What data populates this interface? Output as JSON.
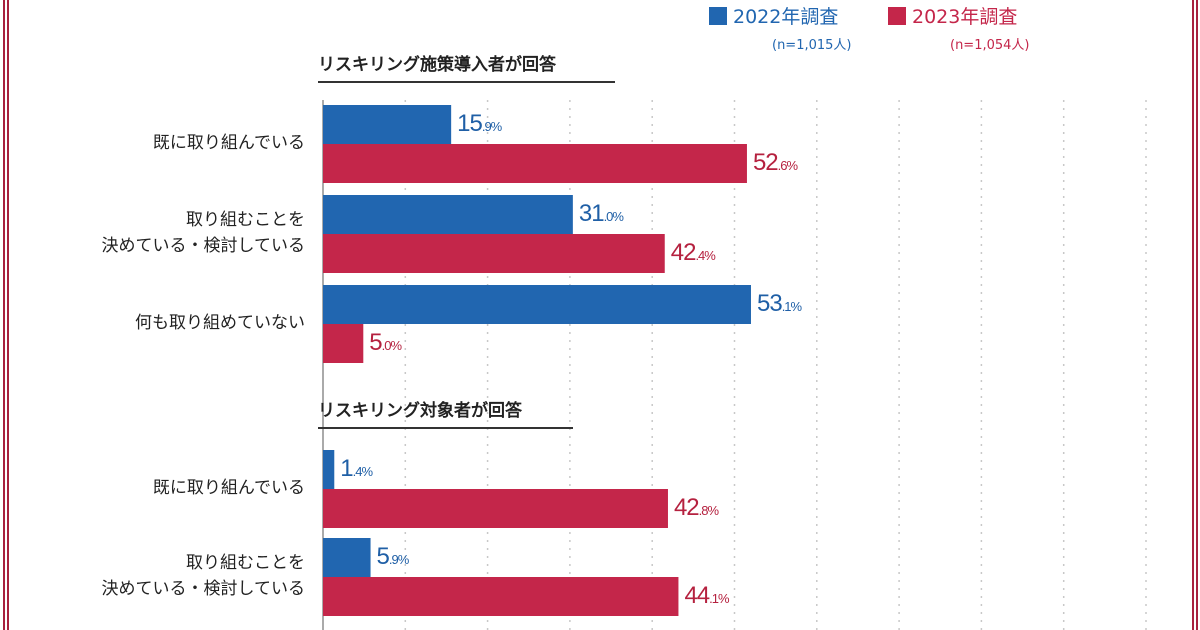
{
  "legend": [
    {
      "label": "2022年調査",
      "n": "(n=1,015人)",
      "color": "#2166b0"
    },
    {
      "label": "2023年調査",
      "n": "(n=1,054人)",
      "color": "#c4264a"
    }
  ],
  "chart_data": {
    "type": "bar",
    "orientation": "horizontal",
    "unit": "%",
    "grid": true,
    "legend_position": "top-right",
    "groups": [
      {
        "title": "リスキリング施策導入者が回答",
        "categories": [
          "既に取り組んでいる",
          "取り組むことを\n決めている・検討している",
          "何も取り組めていない"
        ],
        "series": [
          {
            "name": "2022年調査",
            "values": [
              15.9,
              31.0,
              53.1
            ]
          },
          {
            "name": "2023年調査",
            "values": [
              52.6,
              42.4,
              5.0
            ]
          }
        ]
      },
      {
        "title": "リスキリング対象者が回答",
        "categories": [
          "既に取り組んでいる",
          "取り組むことを\n決めている・検討している"
        ],
        "series": [
          {
            "name": "2022年調査",
            "values": [
              1.4,
              5.9
            ]
          },
          {
            "name": "2023年調査",
            "values": [
              42.8,
              44.1
            ]
          }
        ]
      }
    ]
  }
}
